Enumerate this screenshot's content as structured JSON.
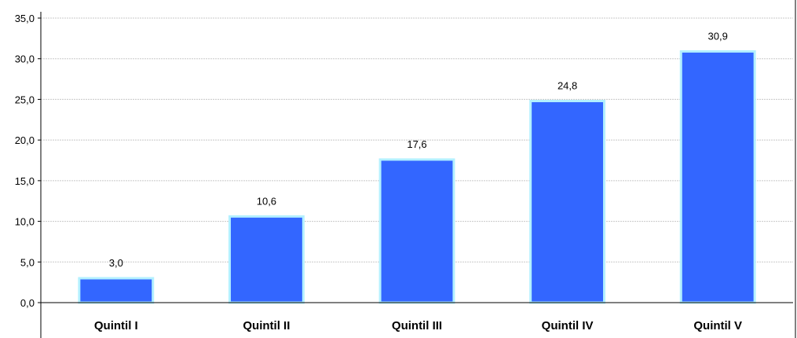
{
  "chart_data": {
    "type": "bar",
    "categories": [
      "Quintil I",
      "Quintil II",
      "Quintil III",
      "Quintil IV",
      "Quintil V"
    ],
    "values": [
      3.0,
      10.6,
      17.6,
      24.8,
      30.9
    ],
    "value_labels": [
      "3,0",
      "10,6",
      "17,6",
      "24,8",
      "30,9"
    ],
    "ylim": [
      0,
      35
    ],
    "yticks": [
      0,
      5,
      10,
      15,
      20,
      25,
      30,
      35
    ],
    "ytick_labels": [
      "0,0",
      "5,0",
      "10,0",
      "15,0",
      "20,0",
      "25,0",
      "30,0",
      "35,0"
    ],
    "title": "",
    "xlabel": "",
    "ylabel": "",
    "grid": true,
    "legend": "none",
    "colors": {
      "bar_fill": "#3366ff",
      "bar_outline": "#b3f0ff",
      "grid": "#c8c8c8",
      "axis": "#000000"
    }
  }
}
